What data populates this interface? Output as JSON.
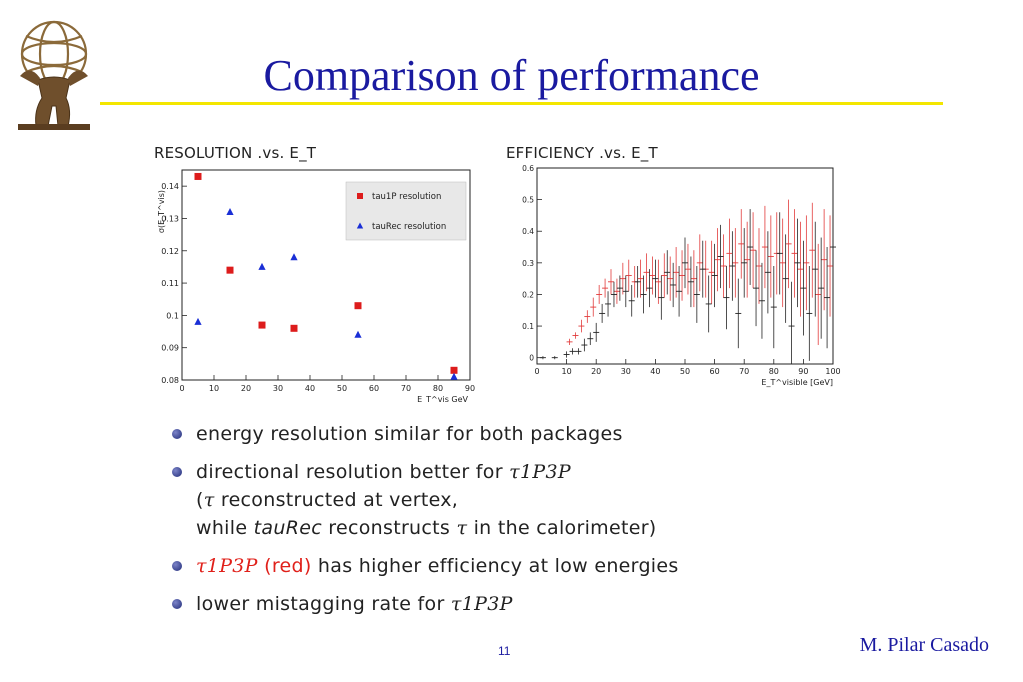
{
  "slide": {
    "title": "Comparison of performance",
    "page_number": "11",
    "author": "M. Pilar Casado"
  },
  "logo": {
    "icon": "atlas-figure-logo-icon"
  },
  "bullets": [
    {
      "id": "b1",
      "parts": [
        {
          "text": "energy resolution similar for both packages"
        }
      ]
    },
    {
      "id": "b2",
      "parts": [
        {
          "text": "directional resolution better for "
        },
        {
          "text": "τ1P3P",
          "style": "math"
        }
      ]
    },
    {
      "id": "b2a",
      "indent": true,
      "parts": [
        {
          "text": "("
        },
        {
          "text": "τ",
          "style": "math"
        },
        {
          "text": " reconstructed at vertex,"
        }
      ]
    },
    {
      "id": "b2b",
      "indent": true,
      "parts": [
        {
          "text": "while "
        },
        {
          "text": "tauRec",
          "style": "em"
        },
        {
          "text": " reconstructs "
        },
        {
          "text": "τ",
          "style": "math"
        },
        {
          "text": " in the calorimeter)"
        }
      ]
    },
    {
      "id": "b3",
      "parts": [
        {
          "text": "τ1P3P",
          "style": "math red"
        },
        {
          "text": " (red)",
          "style": "red"
        },
        {
          "text": " has higher efficiency at low energies"
        }
      ]
    },
    {
      "id": "b4",
      "parts": [
        {
          "text": "lower mistagging rate for "
        },
        {
          "text": "τ1P3P",
          "style": "math"
        }
      ]
    }
  ],
  "chart_data": [
    {
      "type": "scatter",
      "title": "RESOLUTION .vs. E_T",
      "ylabel": "σ(E_T^vis)",
      "xlabel": "E_T^vis GeV",
      "xlim": [
        0,
        90
      ],
      "ylim": [
        0.08,
        0.145
      ],
      "xticks": [
        0,
        10,
        20,
        30,
        40,
        50,
        60,
        70,
        80,
        90
      ],
      "yticks": [
        0.08,
        0.09,
        0.1,
        0.11,
        0.12,
        0.13,
        0.14
      ],
      "ytick_labels": [
        "0.08",
        "0.09",
        "0.1",
        "0.11",
        "0.12",
        "0.13",
        "0.14"
      ],
      "legend_position": "top-right",
      "series": [
        {
          "name": "tau1P resolution",
          "marker": "square",
          "color": "#dd1c1c",
          "x": [
            5,
            15,
            25,
            35,
            55,
            85
          ],
          "y": [
            0.143,
            0.114,
            0.097,
            0.096,
            0.103,
            0.083
          ]
        },
        {
          "name": "tauRec resolution",
          "marker": "triangle",
          "color": "#1a2fd6",
          "x": [
            5,
            15,
            25,
            35,
            55,
            85
          ],
          "y": [
            0.098,
            0.132,
            0.115,
            0.118,
            0.094,
            0.081
          ]
        }
      ]
    },
    {
      "type": "scatter",
      "title": "EFFICIENCY .vs. E_T",
      "xlabel": "E_T^visible [GeV]",
      "xlim": [
        0,
        100
      ],
      "ylim": [
        -0.02,
        0.6
      ],
      "xticks": [
        0,
        10,
        20,
        30,
        40,
        50,
        60,
        70,
        80,
        90,
        100
      ],
      "yticks": [
        0,
        0.1,
        0.2,
        0.3,
        0.4,
        0.5,
        0.6
      ],
      "ytick_labels": [
        "0",
        "0.1",
        "0.2",
        "0.3",
        "0.4",
        "0.5",
        "0.6"
      ],
      "series": [
        {
          "name": "",
          "color": "#e23b3b",
          "error_bars": true,
          "x": [
            11,
            13,
            15,
            17,
            19,
            21,
            23,
            25,
            27,
            29,
            31,
            33,
            35,
            37,
            39,
            41,
            43,
            45,
            47,
            49,
            51,
            53,
            55,
            57,
            59,
            61,
            63,
            65,
            67,
            69,
            71,
            73,
            75,
            77,
            79,
            81,
            83,
            85,
            87,
            89,
            91,
            93,
            95,
            97,
            99
          ],
          "y": [
            0.05,
            0.07,
            0.1,
            0.13,
            0.16,
            0.2,
            0.22,
            0.24,
            0.21,
            0.25,
            0.26,
            0.24,
            0.25,
            0.27,
            0.26,
            0.24,
            0.26,
            0.25,
            0.27,
            0.26,
            0.28,
            0.25,
            0.3,
            0.28,
            0.27,
            0.31,
            0.29,
            0.33,
            0.3,
            0.36,
            0.31,
            0.34,
            0.29,
            0.35,
            0.32,
            0.33,
            0.3,
            0.36,
            0.33,
            0.28,
            0.3,
            0.34,
            0.2,
            0.31,
            0.29
          ],
          "err": [
            0.01,
            0.01,
            0.02,
            0.02,
            0.03,
            0.03,
            0.03,
            0.04,
            0.04,
            0.05,
            0.05,
            0.05,
            0.06,
            0.06,
            0.06,
            0.07,
            0.07,
            0.07,
            0.08,
            0.08,
            0.08,
            0.09,
            0.09,
            0.09,
            0.1,
            0.1,
            0.1,
            0.11,
            0.11,
            0.11,
            0.12,
            0.12,
            0.12,
            0.13,
            0.13,
            0.13,
            0.14,
            0.14,
            0.14,
            0.15,
            0.15,
            0.15,
            0.16,
            0.16,
            0.16
          ]
        },
        {
          "name": "",
          "color": "#222222",
          "error_bars": true,
          "x": [
            2,
            6,
            10,
            12,
            14,
            16,
            18,
            20,
            22,
            24,
            26,
            28,
            30,
            32,
            34,
            36,
            38,
            40,
            42,
            44,
            46,
            48,
            50,
            52,
            54,
            56,
            58,
            60,
            62,
            64,
            66,
            68,
            70,
            72,
            74,
            76,
            78,
            80,
            82,
            84,
            86,
            88,
            90,
            92,
            94,
            96,
            98,
            100
          ],
          "y": [
            0.0,
            0.0,
            0.01,
            0.02,
            0.02,
            0.04,
            0.06,
            0.08,
            0.14,
            0.17,
            0.2,
            0.22,
            0.21,
            0.18,
            0.24,
            0.2,
            0.22,
            0.25,
            0.19,
            0.27,
            0.23,
            0.21,
            0.3,
            0.24,
            0.2,
            0.28,
            0.17,
            0.26,
            0.32,
            0.19,
            0.29,
            0.14,
            0.3,
            0.35,
            0.22,
            0.18,
            0.27,
            0.16,
            0.33,
            0.25,
            0.1,
            0.3,
            0.22,
            0.14,
            0.28,
            0.22,
            0.19,
            0.35
          ],
          "err": [
            0.005,
            0.005,
            0.01,
            0.01,
            0.01,
            0.02,
            0.02,
            0.03,
            0.03,
            0.04,
            0.04,
            0.04,
            0.05,
            0.05,
            0.05,
            0.06,
            0.06,
            0.06,
            0.07,
            0.07,
            0.07,
            0.08,
            0.08,
            0.08,
            0.09,
            0.09,
            0.09,
            0.1,
            0.1,
            0.1,
            0.11,
            0.11,
            0.11,
            0.12,
            0.12,
            0.12,
            0.13,
            0.13,
            0.13,
            0.14,
            0.14,
            0.14,
            0.15,
            0.15,
            0.15,
            0.16,
            0.16,
            0.16
          ]
        }
      ]
    }
  ]
}
